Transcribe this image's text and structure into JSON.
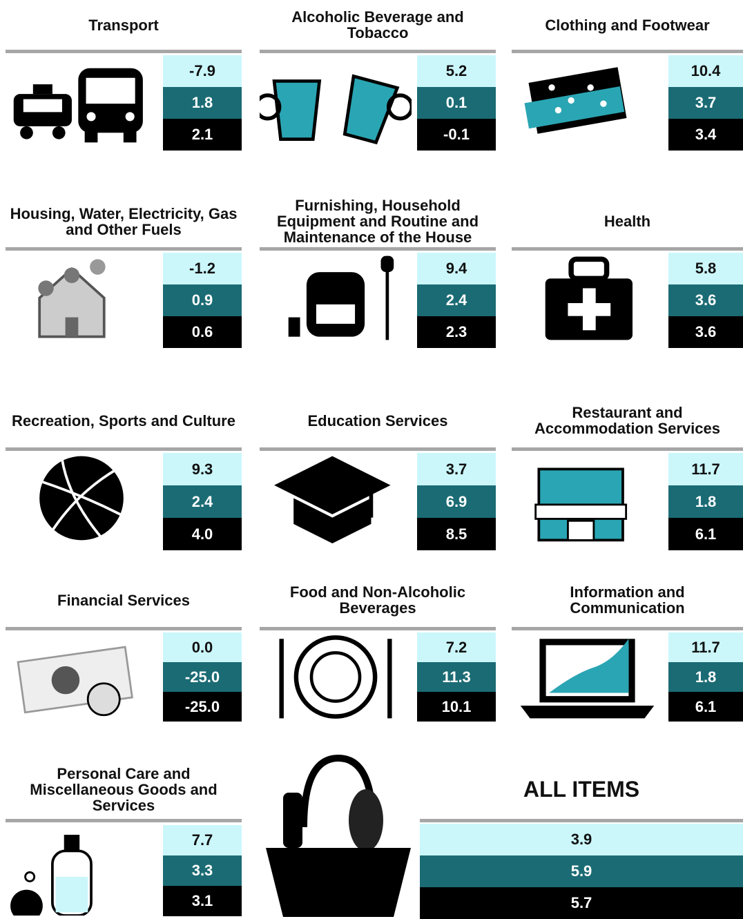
{
  "panels": [
    {
      "title": "Transport",
      "values": [
        "-7.9",
        "1.8",
        "2.1"
      ]
    },
    {
      "title": "Alcoholic Beverage and Tobacco",
      "values": [
        "5.2",
        "0.1",
        "-0.1"
      ]
    },
    {
      "title": "Clothing and Footwear",
      "values": [
        "10.4",
        "3.7",
        "3.4"
      ]
    },
    {
      "title": "Housing, Water, Electricity, Gas and Other Fuels",
      "values": [
        "-1.2",
        "0.9",
        "0.6"
      ]
    },
    {
      "title": "Furnishing, Household Equipment and Routine and Maintenance of the House",
      "values": [
        "9.4",
        "2.4",
        "2.3"
      ]
    },
    {
      "title": "Health",
      "values": [
        "5.8",
        "3.6",
        "3.6"
      ]
    },
    {
      "title": "Recreation, Sports and Culture",
      "values": [
        "9.3",
        "2.4",
        "4.0"
      ]
    },
    {
      "title": "Education Services",
      "values": [
        "3.7",
        "6.9",
        "8.5"
      ]
    },
    {
      "title": "Restaurant and Accommodation Services",
      "values": [
        "11.7",
        "1.8",
        "6.1"
      ]
    },
    {
      "title": "Financial Services",
      "values": [
        "0.0",
        "-25.0",
        "-25.0"
      ]
    },
    {
      "title": "Food and Non-Alcoholic Beverages",
      "values": [
        "7.2",
        "11.3",
        "10.1"
      ]
    },
    {
      "title": "Information and Communication",
      "values": [
        "11.7",
        "1.8",
        "6.1"
      ]
    },
    {
      "title": "Personal Care and Miscellaneous Goods and Services",
      "values": [
        "7.7",
        "3.3",
        "3.1"
      ]
    }
  ],
  "all_items": {
    "title": "ALL ITEMS",
    "values": [
      "3.9",
      "5.9",
      "5.7"
    ]
  }
}
